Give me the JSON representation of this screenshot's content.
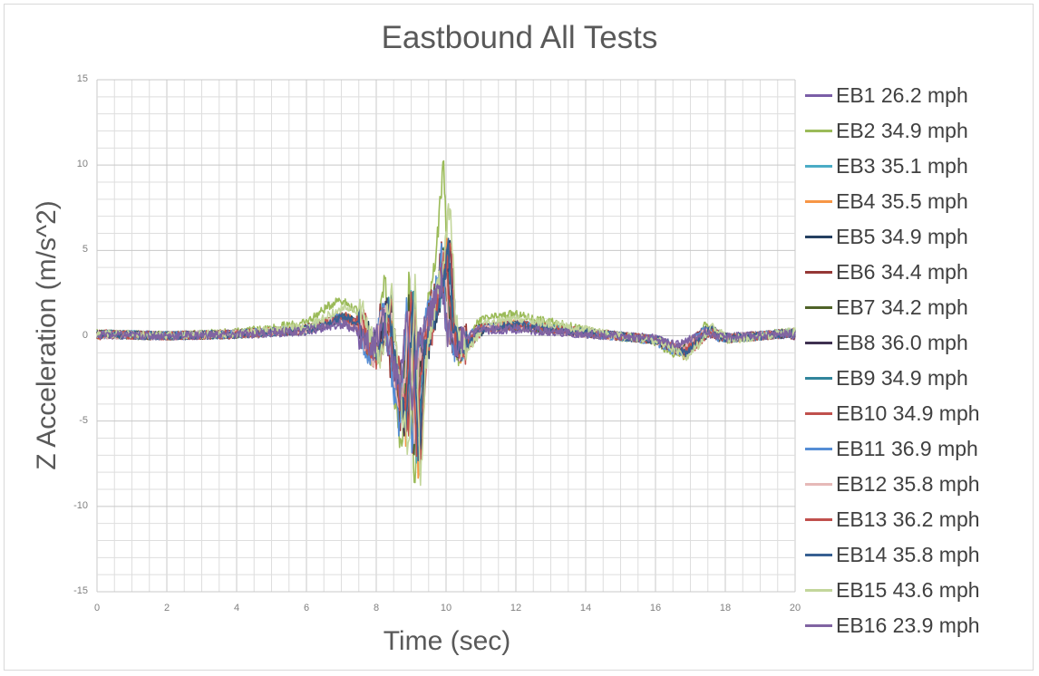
{
  "chart_data": {
    "type": "line",
    "title": "Eastbound All Tests",
    "xlabel": "Time (sec)",
    "ylabel": "Z Acceleration (m/s^2)",
    "xlim": [
      0,
      20
    ],
    "ylim": [
      -15,
      15
    ],
    "x_ticks": [
      "0",
      "2",
      "4",
      "6",
      "8",
      "10",
      "12",
      "14",
      "16",
      "18",
      "20"
    ],
    "y_ticks": [
      "15",
      "10",
      "5",
      "0",
      "-5",
      "-10",
      "-15"
    ],
    "grid": true,
    "legend_position": "right",
    "key_points": {
      "x": [
        0,
        2,
        4,
        6,
        7,
        7.5,
        8,
        8.3,
        8.6,
        8.8,
        9.0,
        9.15,
        9.3,
        9.6,
        9.8,
        10.0,
        10.15,
        10.4,
        11,
        12,
        14,
        16,
        16.8,
        17.5,
        18,
        20
      ],
      "typical_y": [
        0.1,
        0,
        0.1,
        0.4,
        1.2,
        0.8,
        -1.5,
        2.0,
        -3.5,
        -6.5,
        2.5,
        -8.5,
        -1.5,
        1.5,
        3.0,
        5.5,
        0.5,
        -1.0,
        0.5,
        0.7,
        0.2,
        -0.3,
        -1.2,
        0.4,
        -0.2,
        0.2
      ]
    },
    "series": [
      {
        "name": "EB1 26.2 mph",
        "color": "#7b5ea7",
        "peak_max": 3.0,
        "peak_min": -3.8
      },
      {
        "name": "EB2 34.9 mph",
        "color": "#9bbb59",
        "peak_max": 10.0,
        "peak_min": -9.2
      },
      {
        "name": "EB3 35.1 mph",
        "color": "#4bacc6",
        "peak_max": 5.2,
        "peak_min": -7.0
      },
      {
        "name": "EB4 35.5 mph",
        "color": "#f79646",
        "peak_max": 5.5,
        "peak_min": -8.2
      },
      {
        "name": "EB5 34.9 mph",
        "color": "#254061",
        "peak_max": 5.0,
        "peak_min": -6.8
      },
      {
        "name": "EB6 34.4 mph",
        "color": "#953735",
        "peak_max": 4.8,
        "peak_min": -6.5
      },
      {
        "name": "EB7 34.2 mph",
        "color": "#4f6228",
        "peak_max": 4.6,
        "peak_min": -6.2
      },
      {
        "name": "EB8 36.0 mph",
        "color": "#3f3151",
        "peak_max": 4.9,
        "peak_min": -6.9
      },
      {
        "name": "EB9 34.9 mph",
        "color": "#31859c",
        "peak_max": 5.1,
        "peak_min": -6.6
      },
      {
        "name": "EB10 34.9 mph",
        "color": "#c0504d",
        "peak_max": 5.4,
        "peak_min": -7.4
      },
      {
        "name": "EB11 36.9 mph",
        "color": "#558ed5",
        "peak_max": 4.7,
        "peak_min": -7.1
      },
      {
        "name": "EB12 35.8 mph",
        "color": "#e6b9b8",
        "peak_max": 4.5,
        "peak_min": -6.0
      },
      {
        "name": "EB13 36.2 mph",
        "color": "#c0504d",
        "peak_max": 4.8,
        "peak_min": -6.7
      },
      {
        "name": "EB14 35.8 mph",
        "color": "#376092",
        "peak_max": 5.0,
        "peak_min": -7.3
      },
      {
        "name": "EB15 43.6 mph",
        "color": "#c3d69b",
        "peak_max": 8.0,
        "peak_min": -9.0
      },
      {
        "name": "EB16 23.9 mph",
        "color": "#8064a2",
        "peak_max": 3.5,
        "peak_min": -4.0
      }
    ]
  }
}
